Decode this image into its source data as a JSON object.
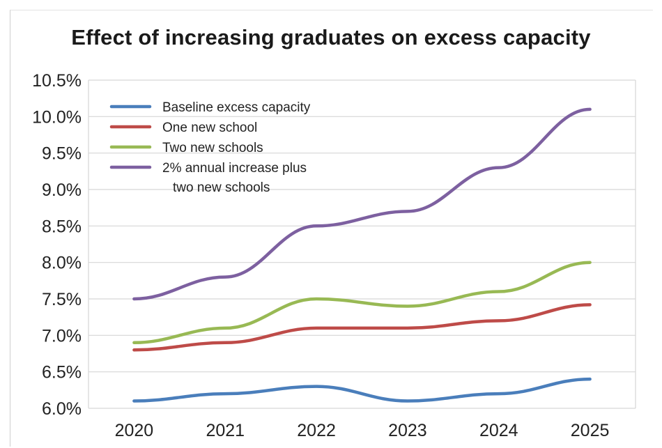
{
  "chart_data": {
    "type": "line",
    "title": "Effect of increasing graduates on excess capacity",
    "xlabel": "",
    "ylabel": "",
    "categories": [
      "2020",
      "2021",
      "2022",
      "2023",
      "2024",
      "2025"
    ],
    "ylim": [
      6.0,
      10.5
    ],
    "yticks": [
      "6.0%",
      "6.5%",
      "7.0%",
      "7.5%",
      "8.0%",
      "8.5%",
      "9.0%",
      "9.5%",
      "10.0%",
      "10.5%"
    ],
    "grid": true,
    "legend_position": "top-left",
    "series": [
      {
        "name": "Baseline excess capacity",
        "color": "#4a7ebb",
        "values": [
          6.1,
          6.2,
          6.3,
          6.1,
          6.2,
          6.4
        ]
      },
      {
        "name": "One new school",
        "color": "#be4b48",
        "values": [
          6.8,
          6.9,
          7.1,
          7.1,
          7.2,
          7.42
        ]
      },
      {
        "name": "Two new schools",
        "color": "#98b954",
        "values": [
          6.9,
          7.1,
          7.5,
          7.4,
          7.6,
          8.0
        ]
      },
      {
        "name": "2% annual increase plus\ntwo new schools",
        "name_lines": [
          "2% annual increase plus",
          "two new schools"
        ],
        "color": "#7d60a0",
        "values": [
          7.5,
          7.8,
          8.5,
          8.7,
          9.3,
          10.1
        ]
      }
    ]
  }
}
